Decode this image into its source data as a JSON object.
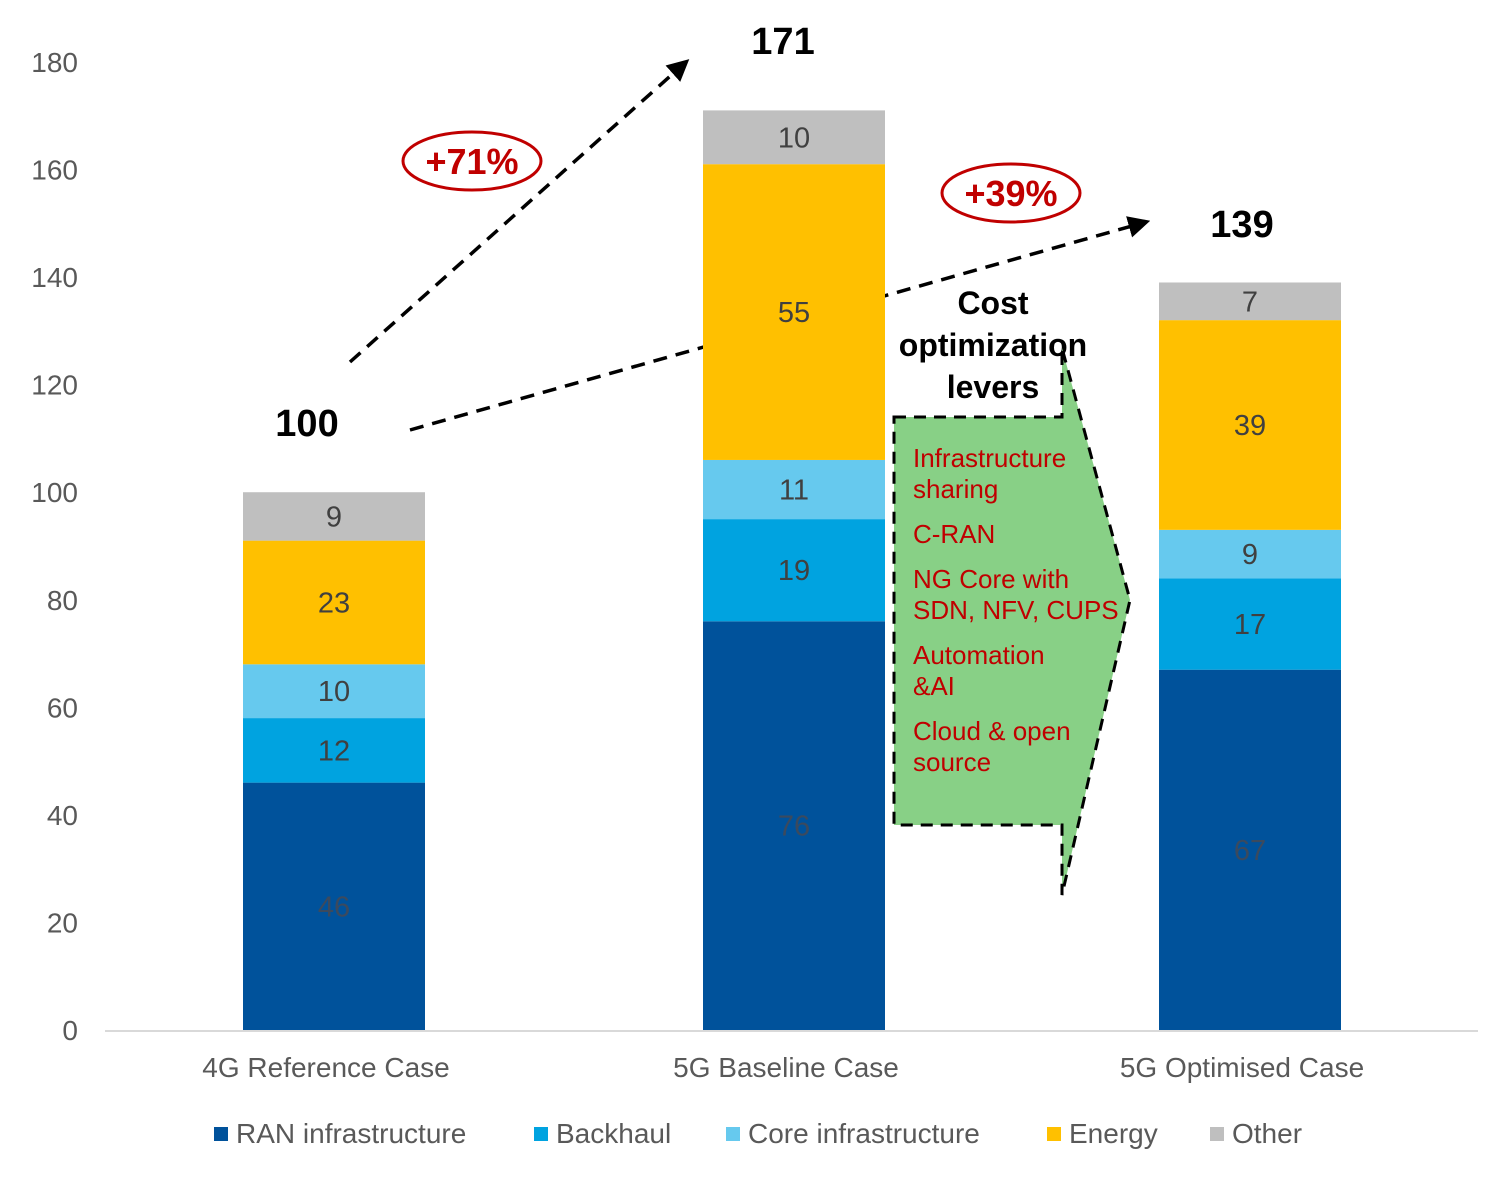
{
  "chart_data": {
    "type": "bar",
    "stacked": true,
    "categories": [
      "4G Reference Case",
      "5G Baseline Case",
      "5G Optimised Case"
    ],
    "series": [
      {
        "name": "RAN infrastructure",
        "color": "#00529b",
        "values": [
          46,
          76,
          67
        ]
      },
      {
        "name": "Backhaul",
        "color": "#00a3e0",
        "values": [
          12,
          19,
          17
        ]
      },
      {
        "name": "Core infrastructure",
        "color": "#66c9ee",
        "values": [
          10,
          11,
          9
        ]
      },
      {
        "name": "Energy",
        "color": "#ffc000",
        "values": [
          23,
          55,
          39
        ]
      },
      {
        "name": "Other",
        "color": "#bfbfbf",
        "values": [
          9,
          10,
          7
        ]
      }
    ],
    "totals": [
      "100",
      "171",
      "139"
    ],
    "ylim": [
      0,
      180
    ],
    "yticks": [
      "0",
      "20",
      "40",
      "60",
      "80",
      "100",
      "120",
      "140",
      "160",
      "180"
    ],
    "grid": false,
    "legend": "bottom",
    "annotations": {
      "growth_baseline": "+71%",
      "growth_optimised": "+39%",
      "levers_title": [
        "Cost",
        "optimization",
        "levers"
      ],
      "levers": [
        [
          "Infrastructure",
          "sharing"
        ],
        [
          "C-RAN"
        ],
        [
          "NG Core with",
          "SDN, NFV, CUPS"
        ],
        [
          "Automation",
          "&AI"
        ],
        [
          "Cloud & open",
          "source"
        ]
      ],
      "lever_color": "#c00000",
      "arrow_fill": "#88d086"
    }
  }
}
